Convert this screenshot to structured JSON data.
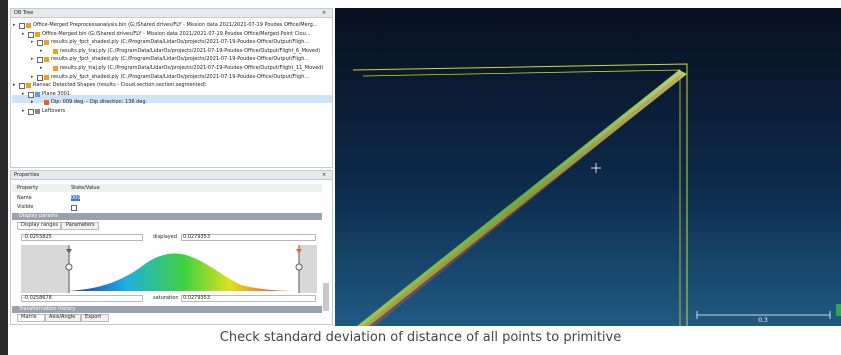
{
  "db_tree": {
    "title": "DB Tree",
    "items": [
      {
        "label": "Office-Merged Preprocessanalysis.bin (G:/Shared drives/FLY - Mission data 2021/2021-07-19 Poudes Office/Merg..."
      },
      {
        "label": "Office-Merged.bin (G:/Shared drives/FLY - Mission data 2021/2021-07-19 Poudes Office/Merged Point Clou..."
      },
      {
        "label": "results.ply_fpct_shaded.ply (C:/ProgramData/LidarOs/projects/2021-07-19-Poudes-Office/Output/Fligh..."
      },
      {
        "label": "results.ply_traj.ply (C:/ProgramData/LidarOs/projects/2021-07-19-Poudes-Office/Output/Flight_6_Moved)"
      },
      {
        "label": "results.ply_fpct_shaded.ply (C:/ProgramData/LidarOs/projects/2021-07-19-Poudes-Office/Output/Fligh..."
      },
      {
        "label": "results.ply_traj.ply (C:/ProgramData/LidarOs/projects/2021-07-19-Poudes-Office/Output/Flight_11_Moved)"
      },
      {
        "label": "results.ply_fpct_shaded.ply (C:/ProgramData/LidarOs/projects/2021-07-19-Poudes-Office/Output/Fligh..."
      },
      {
        "label": "Ransac Detected Shapes (results - Cloud.section.section.segmented)"
      },
      {
        "label": "Plane 3001"
      },
      {
        "label": "Dip: 009 deg. - Dip direction: 136 deg."
      },
      {
        "label": "Leftovers"
      }
    ]
  },
  "properties": {
    "title": "Properties",
    "header": [
      "Property",
      "State/Value"
    ],
    "name_label": "Name",
    "name_value": "000",
    "visible_label": "Visible",
    "section": "Display params",
    "tabs": [
      "Display ranges",
      "Parameters"
    ],
    "displayed_min": "-0.0255825",
    "displayed_label": "displayed",
    "displayed_max": "0.0279353",
    "saturation_min": "-0.0258678",
    "saturation_label": "saturation",
    "saturation_max": "0.0279353",
    "history_section": "Transformation history",
    "bottom_tabs": [
      "Matrix",
      "Axis/Angle",
      "Export"
    ]
  },
  "view": {
    "scale_label": "0.3"
  },
  "caption": "Check standard deviation of distance of all points to primitive"
}
